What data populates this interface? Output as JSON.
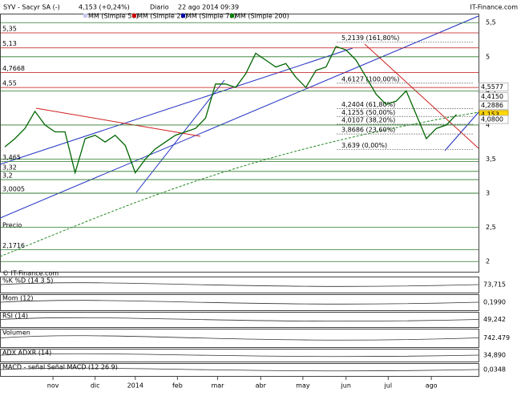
{
  "header": {
    "ticker": "SYV - Sacyr SA (-)",
    "quote": "4,153 (+0,24%)",
    "period": "Diario",
    "date": "22 ago 2014 09:39",
    "site": "IT-Finance.com"
  },
  "chart_data": {
    "type": "line",
    "price_label": "Precio",
    "legend": [
      "MM (Simple 50)",
      "MM (Simple 20)",
      "MM (Simple 70)",
      "MM (Simple 200)"
    ],
    "legend_colors": [
      "#c8c8f0",
      "#cc0000",
      "#0000aa",
      "#008000"
    ],
    "series": [
      {
        "name": "SYV",
        "color": "#006600",
        "values": [
          3.68,
          3.8,
          3.95,
          4.2,
          4.0,
          3.9,
          3.9,
          3.3,
          3.8,
          3.85,
          3.75,
          3.85,
          3.7,
          3.3,
          3.5,
          3.65,
          3.75,
          3.85,
          3.9,
          3.95,
          4.1,
          4.6,
          4.6,
          4.55,
          4.75,
          5.05,
          4.95,
          4.85,
          4.9,
          4.7,
          4.55,
          4.8,
          4.85,
          5.15,
          5.1,
          4.95,
          4.7,
          4.45,
          4.3,
          4.35,
          4.5,
          4.15,
          3.8,
          3.95,
          4.0,
          4.153
        ]
      }
    ],
    "xlim": [
      -0.4,
      47.2
    ],
    "xticks": [
      {
        "value": 4.8,
        "label": "nov"
      },
      {
        "value": 9,
        "label": "dic"
      },
      {
        "value": 13,
        "label": "2014"
      },
      {
        "value": 17.2,
        "label": "feb"
      },
      {
        "value": 21.2,
        "label": "mar"
      },
      {
        "value": 25.5,
        "label": "abr"
      },
      {
        "value": 29.7,
        "label": "may"
      },
      {
        "value": 34,
        "label": "jun"
      },
      {
        "value": 38.2,
        "label": "jul"
      },
      {
        "value": 42.5,
        "label": "ago"
      }
    ],
    "ylim": [
      1.85,
      5.62
    ],
    "yticks": [
      2,
      {
        "value": 2.5,
        "label": "2,5"
      },
      3,
      {
        "value": 3.5,
        "label": "3,5"
      },
      4,
      {
        "value": 4.5,
        "label": "4,5"
      },
      5,
      {
        "value": 5.5,
        "label": "5,5"
      }
    ],
    "grid": true,
    "levels": [
      {
        "value": 5.35,
        "label": "5,35"
      },
      {
        "value": 5.13,
        "label": "5,13"
      },
      {
        "value": 4.7668,
        "label": "4,7668"
      },
      {
        "value": 4.55,
        "label": "4,55"
      },
      {
        "value": 3.465,
        "label": "3,465"
      },
      {
        "value": 3.32,
        "label": "3,32"
      },
      {
        "value": 3.2,
        "label": "3,2"
      },
      {
        "value": 3.0005,
        "label": "3,0005"
      },
      {
        "value": 2.1716,
        "label": "2,1716"
      }
    ],
    "fibonacci": [
      {
        "value": 5.2139,
        "label": "5,2139 (161,80%)"
      },
      {
        "value": 4.6127,
        "label": "4,6127 (100,00%)"
      },
      {
        "value": 4.2404,
        "label": "4,2404 (61,80%)"
      },
      {
        "value": 4.1255,
        "label": "4,1255 (50,00%)"
      },
      {
        "value": 4.0107,
        "label": "4,0107 (38,20%)"
      },
      {
        "value": 3.8686,
        "label": "3,8686 (23,60%)"
      },
      {
        "value": 3.639,
        "label": "3,639 (0,00%)"
      }
    ],
    "right_labels": [
      {
        "value": 4.5577,
        "label": "4,5577"
      },
      {
        "value": 4.415,
        "label": "4,4150"
      },
      {
        "value": 4.2886,
        "label": "4,2886"
      },
      {
        "value": 4.153,
        "label": "4,153"
      },
      {
        "value": 4.08,
        "label": "4,0800"
      }
    ],
    "copyright": "© IT-Finance.com"
  },
  "indicators": [
    {
      "name": "%K %D (14 3 5)",
      "value": "73,715"
    },
    {
      "name": "Mom (12)",
      "value": "0,1990"
    },
    {
      "name": "RSI (14)",
      "value": "49,242"
    },
    {
      "name": "Volumen",
      "value": "742.479"
    },
    {
      "name": "ADX ADXR (14)",
      "value": "34,890"
    },
    {
      "name": "MACD - señal Señal MACD (12 26 9)",
      "value": "0,0348"
    }
  ]
}
